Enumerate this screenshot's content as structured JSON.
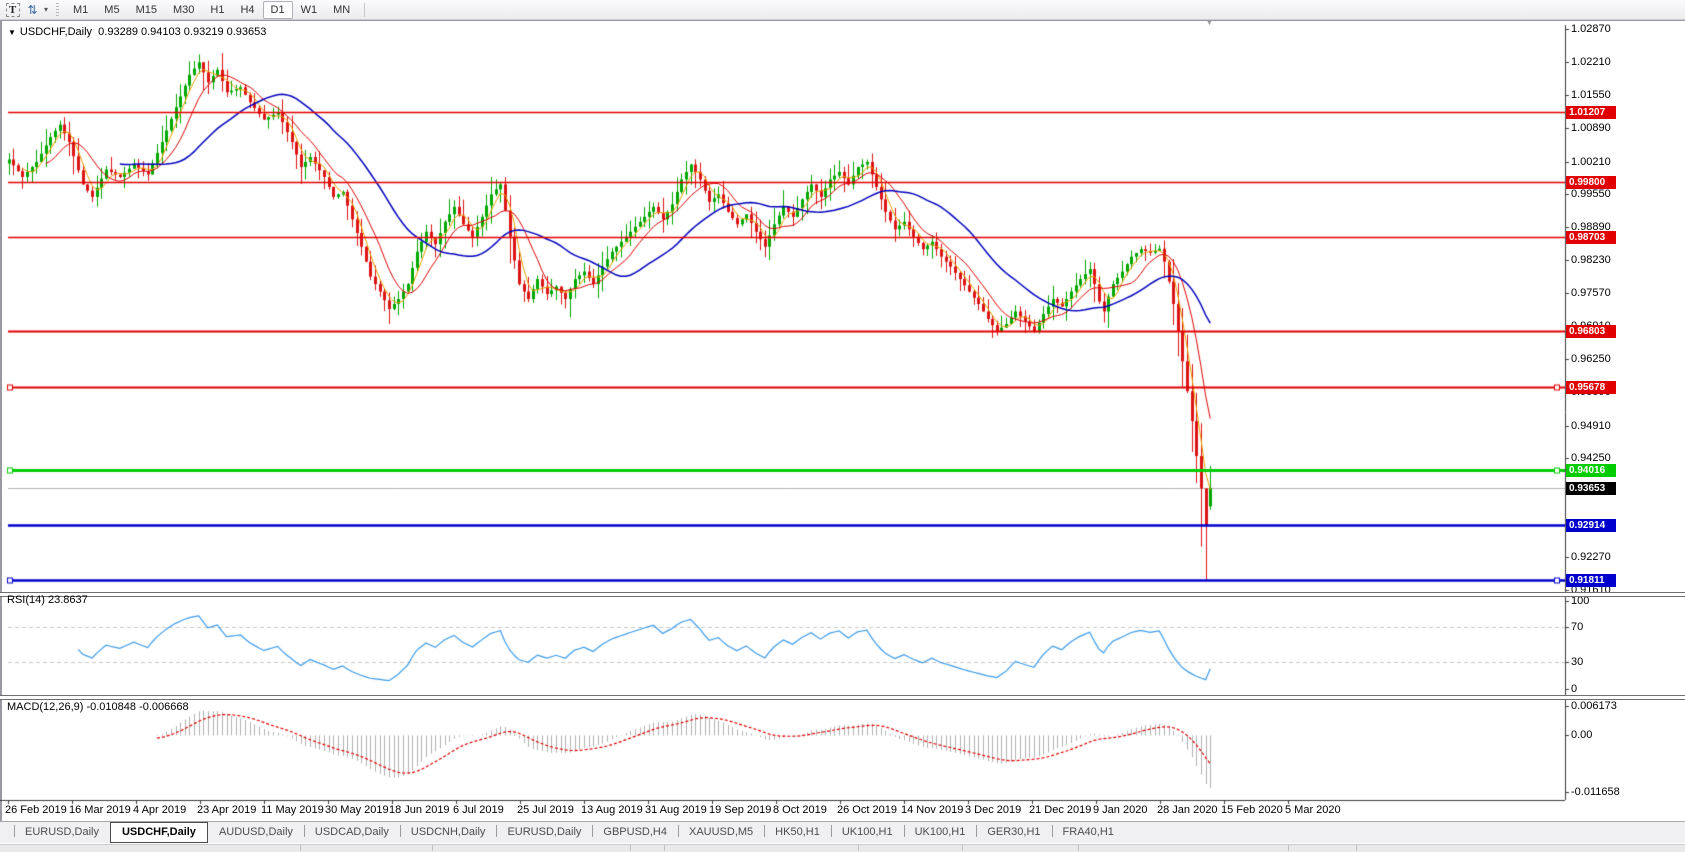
{
  "toolbar": {
    "text_tool_label": "T",
    "timeframes": [
      "M1",
      "M5",
      "M15",
      "M30",
      "H1",
      "H4",
      "D1",
      "W1",
      "MN"
    ],
    "active_timeframe": "D1"
  },
  "chart": {
    "symbol_label": "USDCHF,Daily",
    "quote": "0.93289 0.94103 0.93219 0.93653"
  },
  "indicators": {
    "rsi_label": "RSI(14) 23.8637",
    "macd_label": "MACD(12,26,9) -0.010848 -0.006668"
  },
  "price_axis_ticks": [
    "1.02870",
    "1.02210",
    "1.01550",
    "1.00890",
    "1.00210",
    "0.99550",
    "0.98890",
    "0.98230",
    "0.97570",
    "0.96910",
    "0.96250",
    "0.95590",
    "0.94910",
    "0.94250",
    "0.93590",
    "0.92930",
    "0.92270",
    "0.91610"
  ],
  "rsi_axis_ticks": [
    "100",
    "70",
    "30",
    "0"
  ],
  "macd_axis_ticks": [
    "0.006173",
    "0.00",
    "-0.011658"
  ],
  "date_axis_labels": [
    "26 Feb 2019",
    "16 Mar 2019",
    "4 Apr 2019",
    "23 Apr 2019",
    "11 May 2019",
    "30 May 2019",
    "18 Jun 2019",
    "6 Jul 2019",
    "25 Jul 2019",
    "13 Aug 2019",
    "31 Aug 2019",
    "19 Sep 2019",
    "8 Oct 2019",
    "26 Oct 2019",
    "14 Nov 2019",
    "3 Dec 2019",
    "21 Dec 2019",
    "9 Jan 2020",
    "28 Jan 2020",
    "15 Feb 2020",
    "5 Mar 2020"
  ],
  "bottom_tabs": [
    {
      "label": "EURUSD,Daily"
    },
    {
      "label": "USDCHF,Daily",
      "active": true
    },
    {
      "label": "AUDUSD,Daily"
    },
    {
      "label": "USDCAD,Daily"
    },
    {
      "label": "USDCNH,Daily"
    },
    {
      "label": "EURUSD,Daily"
    },
    {
      "label": "GBPUSD,H4"
    },
    {
      "label": "XAUUSD,M5"
    },
    {
      "label": "HK50,H1"
    },
    {
      "label": "UK100,H1"
    },
    {
      "label": "UK100,H1"
    },
    {
      "label": "GER30,H1"
    },
    {
      "label": "FRA40,H1"
    }
  ],
  "chart_data": {
    "type": "candlestick",
    "symbol": "USDCHF",
    "timeframe": "Daily",
    "current_bar": {
      "open": 0.93289,
      "high": 0.94103,
      "low": 0.93219,
      "close": 0.93653
    },
    "ylim": [
      0.9157,
      1.0295
    ],
    "num_candles": 260,
    "close_anchors": [
      [
        0,
        1.0025
      ],
      [
        3,
        0.999
      ],
      [
        6,
        1.002
      ],
      [
        9,
        1.007
      ],
      [
        11,
        1.0095
      ],
      [
        13,
        1.006
      ],
      [
        16,
        0.9975
      ],
      [
        18,
        0.995
      ],
      [
        21,
        1.0005
      ],
      [
        24,
        0.999
      ],
      [
        27,
        1.0015
      ],
      [
        30,
        0.9995
      ],
      [
        33,
        1.006
      ],
      [
        36,
        1.013
      ],
      [
        39,
        1.0195
      ],
      [
        41,
        1.022
      ],
      [
        43,
        1.018
      ],
      [
        45,
        1.0205
      ],
      [
        47,
        1.016
      ],
      [
        50,
        1.017
      ],
      [
        52,
        1.014
      ],
      [
        55,
        1.0105
      ],
      [
        58,
        1.012
      ],
      [
        61,
        1.006
      ],
      [
        63,
        1.001
      ],
      [
        65,
        1.003
      ],
      [
        68,
        0.999
      ],
      [
        70,
        0.995
      ],
      [
        72,
        0.996
      ],
      [
        74,
        0.9905
      ],
      [
        76,
        0.985
      ],
      [
        78,
        0.979
      ],
      [
        80,
        0.976
      ],
      [
        82,
        0.9725
      ],
      [
        84,
        0.9745
      ],
      [
        86,
        0.9775
      ],
      [
        88,
        0.984
      ],
      [
        90,
        0.988
      ],
      [
        92,
        0.9855
      ],
      [
        94,
        0.99
      ],
      [
        96,
        0.993
      ],
      [
        98,
        0.9895
      ],
      [
        100,
        0.987
      ],
      [
        102,
        0.991
      ],
      [
        104,
        0.9955
      ],
      [
        106,
        0.9975
      ],
      [
        108,
        0.987
      ],
      [
        110,
        0.9775
      ],
      [
        112,
        0.9745
      ],
      [
        114,
        0.9785
      ],
      [
        116,
        0.9755
      ],
      [
        118,
        0.977
      ],
      [
        120,
        0.9745
      ],
      [
        122,
        0.9785
      ],
      [
        124,
        0.98
      ],
      [
        126,
        0.9775
      ],
      [
        128,
        0.981
      ],
      [
        130,
        0.984
      ],
      [
        133,
        0.987
      ],
      [
        136,
        0.99
      ],
      [
        139,
        0.993
      ],
      [
        141,
        0.9905
      ],
      [
        143,
        0.9935
      ],
      [
        145,
        0.9985
      ],
      [
        147,
        1.0015
      ],
      [
        149,
        0.9985
      ],
      [
        151,
        0.994
      ],
      [
        153,
        0.9955
      ],
      [
        155,
        0.992
      ],
      [
        157,
        0.9895
      ],
      [
        159,
        0.9915
      ],
      [
        161,
        0.988
      ],
      [
        163,
        0.985
      ],
      [
        165,
        0.9895
      ],
      [
        167,
        0.993
      ],
      [
        169,
        0.991
      ],
      [
        171,
        0.9945
      ],
      [
        173,
        0.9975
      ],
      [
        175,
        0.995
      ],
      [
        177,
        0.9985
      ],
      [
        179,
        1.0
      ],
      [
        181,
        0.9975
      ],
      [
        183,
        1.001
      ],
      [
        185,
        1.002
      ],
      [
        187,
        0.997
      ],
      [
        189,
        0.992
      ],
      [
        191,
        0.9885
      ],
      [
        193,
        0.99
      ],
      [
        195,
        0.987
      ],
      [
        197,
        0.9845
      ],
      [
        199,
        0.986
      ],
      [
        201,
        0.983
      ],
      [
        203,
        0.981
      ],
      [
        205,
        0.9785
      ],
      [
        207,
        0.976
      ],
      [
        209,
        0.9735
      ],
      [
        211,
        0.9705
      ],
      [
        213,
        0.968
      ],
      [
        215,
        0.9695
      ],
      [
        217,
        0.972
      ],
      [
        219,
        0.97
      ],
      [
        221,
        0.968
      ],
      [
        223,
        0.9715
      ],
      [
        225,
        0.9745
      ],
      [
        227,
        0.973
      ],
      [
        229,
        0.976
      ],
      [
        231,
        0.9785
      ],
      [
        233,
        0.9805
      ],
      [
        234,
        0.9775
      ],
      [
        235,
        0.974
      ],
      [
        236,
        0.972
      ],
      [
        237,
        0.975
      ],
      [
        238,
        0.9775
      ],
      [
        240,
        0.98
      ],
      [
        242,
        0.983
      ],
      [
        244,
        0.9845
      ],
      [
        246,
        0.9838
      ],
      [
        248,
        0.9846
      ],
      [
        249,
        0.982
      ],
      [
        250,
        0.978
      ],
      [
        251,
        0.9735
      ],
      [
        252,
        0.968
      ],
      [
        253,
        0.962
      ],
      [
        254,
        0.956
      ],
      [
        255,
        0.95
      ],
      [
        256,
        0.943
      ],
      [
        257,
        0.9365
      ],
      [
        258,
        0.929
      ],
      [
        259,
        0.93653
      ]
    ],
    "overrides": {
      "41": {
        "high": 1.0236
      },
      "82": {
        "low": 0.9695
      },
      "257": {
        "low": 0.9248
      },
      "258": {
        "low": 0.91811,
        "high": 0.9346
      },
      "259": {
        "open": 0.93289,
        "high": 0.94103,
        "low": 0.93219,
        "close": 0.93653
      }
    },
    "moving_averages": [
      {
        "period": 4,
        "color": "#e8a000",
        "width": 1
      },
      {
        "period": 9,
        "color": "#dd0000",
        "width": 1
      },
      {
        "period": 25,
        "color": "#0000bb",
        "width": 1.5
      }
    ],
    "hlines": [
      {
        "label": "1.01207",
        "price": 1.01207,
        "color": "#e00000",
        "width": 1.5,
        "handles": false
      },
      {
        "label": "0.99800",
        "price": 0.998,
        "color": "#e00000",
        "width": 1.5,
        "handles": false
      },
      {
        "label": "0.98703",
        "price": 0.98703,
        "color": "#e00000",
        "width": 1.5,
        "handles": false
      },
      {
        "label": "0.96803",
        "price": 0.96803,
        "color": "#e00000",
        "width": 2,
        "handles": false
      },
      {
        "label": "0.95678",
        "price": 0.95678,
        "color": "#e00000",
        "width": 2,
        "handles": true
      },
      {
        "label": "0.94016",
        "price": 0.94016,
        "color": "#00cc00",
        "width": 3,
        "handles": true
      },
      {
        "label": "0.92914",
        "price": 0.92914,
        "color": "#0000cc",
        "width": 2.5,
        "handles": false
      },
      {
        "label": "0.91811",
        "price": 0.91811,
        "color": "#0000cc",
        "width": 2.5,
        "handles": true
      }
    ],
    "current_price": {
      "label": "0.93653",
      "price": 0.93653
    },
    "rsi": {
      "period": 14,
      "current": 23.8637,
      "levels": [
        70,
        30
      ],
      "ylim": [
        -7,
        104.5
      ],
      "color": "#3d9be9"
    },
    "macd": {
      "fast": 12,
      "slow": 26,
      "signal": 9,
      "current_macd": -0.010848,
      "current_signal": -0.006668,
      "ylim": [
        -0.01329,
        0.00731
      ],
      "hist_color": "#b0b0b0",
      "signal_color": "#dd0000"
    },
    "colors": {
      "up": "#00a800",
      "down": "#dc1414",
      "current_line": "#b4b4b4",
      "level_dash": "#c8c8c8",
      "axis": "#3a3a3a"
    }
  }
}
